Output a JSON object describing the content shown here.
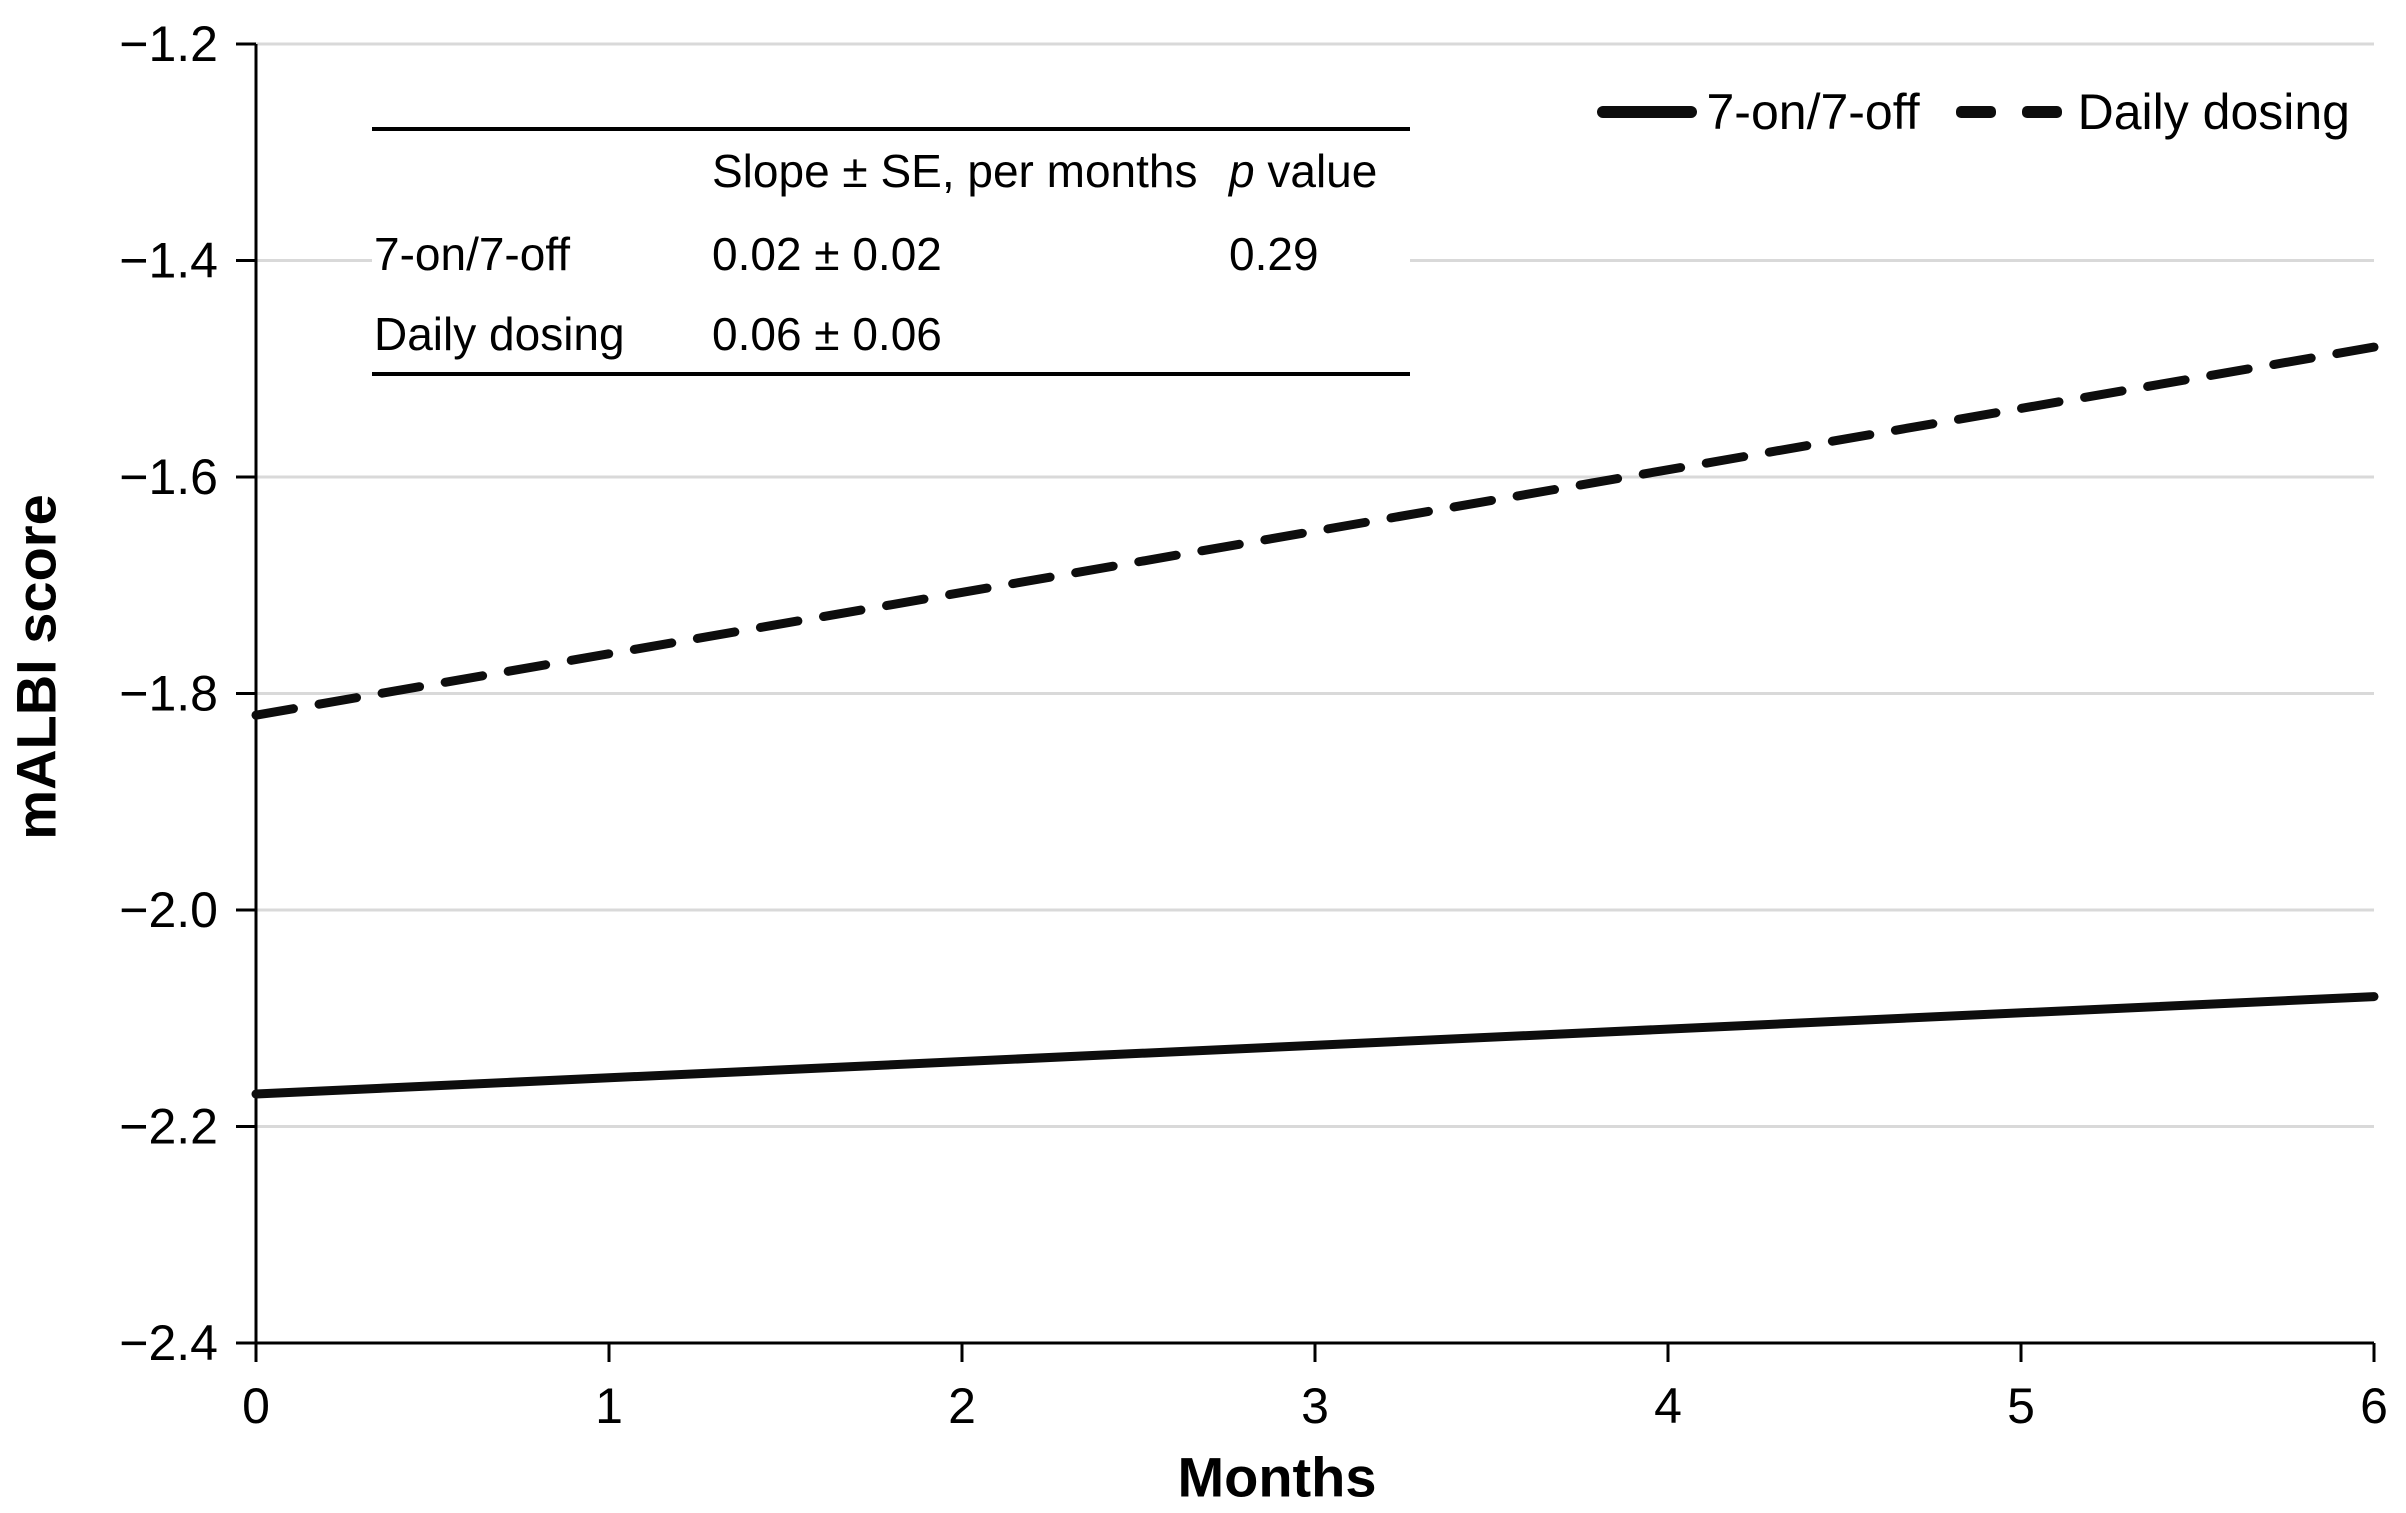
{
  "figure": {
    "background": "#ffffff",
    "text_color": "#000000"
  },
  "chart_data": {
    "type": "line",
    "title": "",
    "xlabel": "Months",
    "ylabel": "mALBI score",
    "xlim": [
      0,
      6
    ],
    "ylim": [
      -2.4,
      -1.2
    ],
    "xticks": [
      0,
      1,
      2,
      3,
      4,
      5,
      6
    ],
    "yticks": [
      -1.2,
      -1.4,
      -1.6,
      -1.8,
      -2.0,
      -2.2,
      -2.4
    ],
    "grid": "horizontal",
    "gridline_color": "#d9d9d9",
    "axis_color": "#000000",
    "line_color": "#0d0d0d",
    "legend_position": "top-right",
    "series": [
      {
        "name": "7-on/7-off",
        "style": "solid",
        "x": [
          0,
          6
        ],
        "y": [
          -2.17,
          -2.08
        ]
      },
      {
        "name": "Daily dosing",
        "style": "dashed",
        "x": [
          0,
          6
        ],
        "y": [
          -1.82,
          -1.48
        ]
      }
    ]
  },
  "legend": {
    "items": [
      {
        "label": "7-on/7-off",
        "style": "solid"
      },
      {
        "label": "Daily dosing",
        "style": "dashed"
      }
    ]
  },
  "inset_table": {
    "header": {
      "col1": "",
      "col2": "Slope ± SE, per months",
      "p_italic": "p",
      "p_rest": " value"
    },
    "rows": [
      {
        "label": "7-on/7-off",
        "slope": "0.02 ± 0.02",
        "p": "0.29"
      },
      {
        "label": "Daily dosing",
        "slope": "0.06 ± 0.06",
        "p": ""
      }
    ]
  }
}
